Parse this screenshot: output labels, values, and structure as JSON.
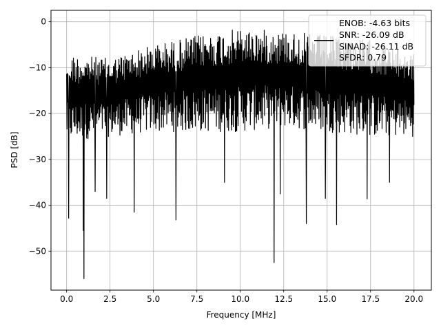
{
  "chart_data": {
    "type": "line",
    "xlabel": "Frequency [MHz]",
    "ylabel": "PSD [dB]",
    "xlim": [
      -0.9,
      21.0
    ],
    "ylim": [
      -58.5,
      2.5
    ],
    "x_ticks": [
      "0.0",
      "2.5",
      "5.0",
      "7.5",
      "10.0",
      "12.5",
      "15.0",
      "17.5",
      "20.0"
    ],
    "y_ticks": [
      "0",
      "−10",
      "−20",
      "−30",
      "−40",
      "−50"
    ],
    "x_tick_values": [
      0,
      2.5,
      5,
      7.5,
      10,
      12.5,
      15,
      17.5,
      20
    ],
    "y_tick_values": [
      0,
      -10,
      -20,
      -30,
      -40,
      -50
    ],
    "grid": true,
    "legend_position": "top-right",
    "legend_lines": [
      "ENOB: -4.63 bits",
      "SNR: -26.09 dB",
      "SINAD: -26.11 dB",
      "SFDR: 0.79"
    ],
    "series": [
      {
        "color": "#000000",
        "x_range": [
          0,
          20
        ],
        "points": 1024,
        "envelope_top": [
          [
            0,
            -7
          ],
          [
            2.5,
            -8
          ],
          [
            5,
            -5
          ],
          [
            7.5,
            -3
          ],
          [
            10,
            -1.5
          ],
          [
            12.5,
            -2
          ],
          [
            15,
            -3
          ],
          [
            17.5,
            -4
          ],
          [
            20,
            -7
          ]
        ],
        "envelope_bottom": [
          [
            0,
            -26
          ],
          [
            2.5,
            -25
          ],
          [
            5,
            -24
          ],
          [
            7.5,
            -24
          ],
          [
            10,
            -24
          ],
          [
            12.5,
            -23
          ],
          [
            15,
            -24
          ],
          [
            17.5,
            -25
          ],
          [
            20,
            -25
          ]
        ],
        "deep_dips": [
          [
            0.12,
            -42.8
          ],
          [
            0.95,
            -45.5
          ],
          [
            1.0,
            -56
          ],
          [
            1.65,
            -37
          ],
          [
            2.3,
            -38.5
          ],
          [
            3.9,
            -41.5
          ],
          [
            6.3,
            -43.2
          ],
          [
            9.1,
            -35
          ],
          [
            11.95,
            -52.5
          ],
          [
            12.3,
            -37.5
          ],
          [
            13.8,
            -44
          ],
          [
            14.9,
            -38.5
          ],
          [
            15.55,
            -44.2
          ],
          [
            17.3,
            -38.6
          ],
          [
            18.6,
            -35
          ]
        ]
      }
    ]
  }
}
